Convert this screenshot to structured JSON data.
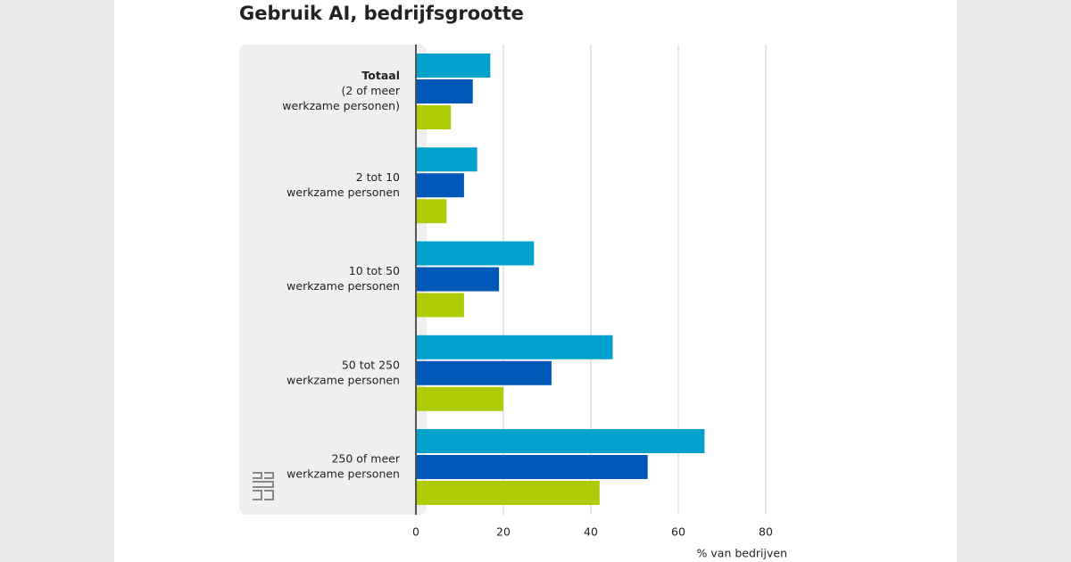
{
  "chart_data": {
    "type": "bar",
    "orientation": "horizontal",
    "title": "Gebruik AI, bedrijfsgrootte",
    "categories": [
      [
        "Totaal",
        "(2 of meer",
        "werkzame personen)"
      ],
      [
        "2 tot 10",
        "werkzame personen"
      ],
      [
        "10 tot 50",
        "werkzame personen"
      ],
      [
        "50 tot 250",
        "werkzame personen"
      ],
      [
        "250 of meer",
        "werkzame personen"
      ]
    ],
    "series": [
      {
        "color": "#00a1cd",
        "values": [
          17,
          14,
          27,
          45,
          66
        ]
      },
      {
        "color": "#0058b8",
        "values": [
          13,
          11,
          19,
          31,
          53
        ]
      },
      {
        "color": "#afcb05",
        "values": [
          8,
          7,
          11,
          20,
          42
        ]
      }
    ],
    "xlabel": "% van bedrijven",
    "xlim": [
      0,
      80
    ],
    "xticks": [
      0,
      20,
      40,
      60,
      80
    ],
    "grid": true
  }
}
